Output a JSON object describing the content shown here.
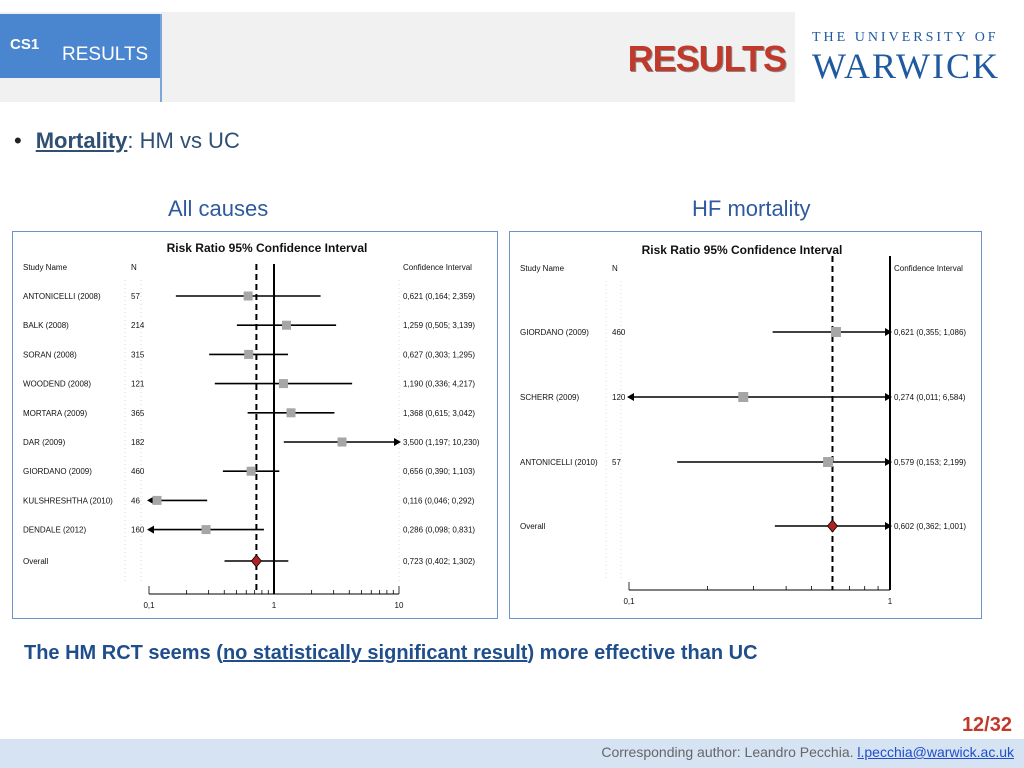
{
  "header": {
    "section_code": "CS1",
    "section_name": "RESULTS",
    "slide_title": "RESULTS",
    "logo_top": "THE UNIVERSITY OF",
    "logo_main": "WARWICK"
  },
  "bullet": {
    "term": "Mortality",
    "rest": ": HM vs UC"
  },
  "subheads": {
    "left": "All causes",
    "right": "HF mortality"
  },
  "chart_data": [
    {
      "type": "forest",
      "title": "Risk Ratio 95% Confidence Interval",
      "col_study": "Study Name",
      "col_n": "N",
      "col_ci": "Confidence Interval",
      "scale": "log",
      "xlim": [
        0.1,
        10
      ],
      "ticks": [
        {
          "v": 0.1,
          "l": "0,1"
        },
        {
          "v": 1,
          "l": "1"
        },
        {
          "v": 10,
          "l": "10"
        }
      ],
      "reference_line": 1,
      "overall_line": 0.723,
      "studies": [
        {
          "name": "ANTONICELLI (2008)",
          "n": "57",
          "rr": 0.621,
          "lo": 0.164,
          "hi": 2.359,
          "ci": "0,621 (0,164; 2,359)"
        },
        {
          "name": "BALK (2008)",
          "n": "214",
          "rr": 1.259,
          "lo": 0.505,
          "hi": 3.139,
          "ci": "1,259 (0,505; 3,139)"
        },
        {
          "name": "SORAN (2008)",
          "n": "315",
          "rr": 0.627,
          "lo": 0.303,
          "hi": 1.295,
          "ci": "0,627 (0,303; 1,295)"
        },
        {
          "name": "WOODEND (2008)",
          "n": "121",
          "rr": 1.19,
          "lo": 0.336,
          "hi": 4.217,
          "ci": "1,190 (0,336; 4,217)"
        },
        {
          "name": "MORTARA (2009)",
          "n": "365",
          "rr": 1.368,
          "lo": 0.615,
          "hi": 3.042,
          "ci": "1,368 (0,615; 3,042)"
        },
        {
          "name": "DAR (2009)",
          "n": "182",
          "rr": 3.5,
          "lo": 1.197,
          "hi": 10.23,
          "ci": "3,500 (1,197; 10,230)"
        },
        {
          "name": "GIORDANO (2009)",
          "n": "460",
          "rr": 0.656,
          "lo": 0.39,
          "hi": 1.103,
          "ci": "0,656 (0,390; 1,103)"
        },
        {
          "name": "KULSHRESHTHA (2010)",
          "n": "46",
          "rr": 0.116,
          "lo": 0.046,
          "hi": 0.292,
          "ci": "0,116 (0,046; 0,292)"
        },
        {
          "name": "DENDALE (2012)",
          "n": "160",
          "rr": 0.286,
          "lo": 0.098,
          "hi": 0.831,
          "ci": "0,286 (0,098; 0,831)"
        }
      ],
      "overall": {
        "name": "Overall",
        "rr": 0.723,
        "lo": 0.402,
        "hi": 1.302,
        "ci": "0,723 (0,402; 1,302)"
      }
    },
    {
      "type": "forest",
      "title": "Risk Ratio 95% Confidence Interval",
      "col_study": "Study Name",
      "col_n": "N",
      "col_ci": "Confidence Interval",
      "scale": "log",
      "xlim": [
        0.1,
        1
      ],
      "ticks": [
        {
          "v": 0.1,
          "l": "0,1"
        },
        {
          "v": 1,
          "l": "1"
        }
      ],
      "reference_line": 1,
      "overall_line": 0.602,
      "studies": [
        {
          "name": "GIORDANO (2009)",
          "n": "460",
          "rr": 0.621,
          "lo": 0.355,
          "hi": 1.086,
          "ci": "0,621 (0,355; 1,086)"
        },
        {
          "name": "SCHERR (2009)",
          "n": "120",
          "rr": 0.274,
          "lo": 0.011,
          "hi": 6.584,
          "ci": "0,274 (0,011; 6,584)"
        },
        {
          "name": "ANTONICELLI (2010)",
          "n": "57",
          "rr": 0.579,
          "lo": 0.153,
          "hi": 2.199,
          "ci": "0,579 (0,153; 2,199)"
        }
      ],
      "overall": {
        "name": "Overall",
        "rr": 0.602,
        "lo": 0.362,
        "hi": 1.001,
        "ci": "0,602 (0,362; 1,001)"
      }
    }
  ],
  "conclusion": {
    "pre": "The HM RCT seems (",
    "underlined": "no statistically significant result",
    "post": ") more effective than UC"
  },
  "page_number": "12/32",
  "footer": {
    "text": "Corresponding author: Leandro Pecchia. ",
    "email": "l.pecchia@warwick.ac.uk"
  },
  "colors": {
    "accent_blue": "#4a86cf",
    "title_red": "#c0392b",
    "diamond": "#b22222",
    "box_gray": "#a6a6a6"
  }
}
